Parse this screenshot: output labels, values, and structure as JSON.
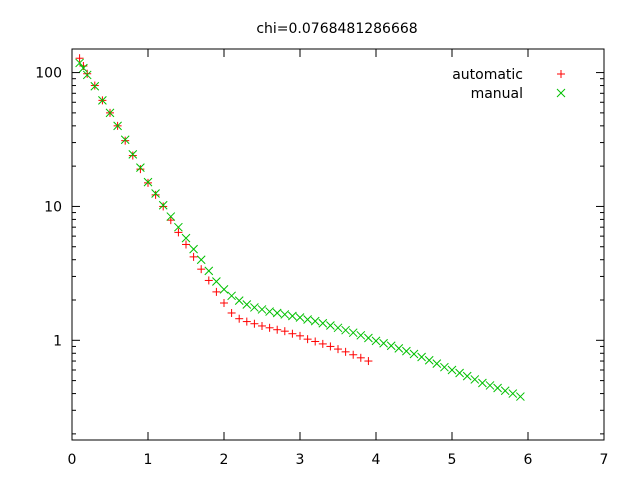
{
  "chart_data": {
    "type": "scatter",
    "title": "chi=0.0768481286668",
    "xlabel": "",
    "ylabel": "",
    "xlim": [
      0,
      7
    ],
    "ylim": [
      0.18,
      150
    ],
    "yscale": "log",
    "grid": false,
    "legend_position": "top-right",
    "xticks": [
      0,
      1,
      2,
      3,
      4,
      5,
      6,
      7
    ],
    "xtick_labels": [
      "0",
      "1",
      "2",
      "3",
      "4",
      "5",
      "6",
      "7"
    ],
    "yticks": [
      1,
      10,
      100
    ],
    "ytick_labels": [
      "1",
      "10",
      "100"
    ],
    "series": [
      {
        "name": "automatic",
        "marker": "plus",
        "color": "#ff0000",
        "x": [
          0.1,
          0.15,
          0.2,
          0.3,
          0.4,
          0.5,
          0.6,
          0.7,
          0.8,
          0.9,
          1.0,
          1.1,
          1.2,
          1.3,
          1.4,
          1.5,
          1.6,
          1.7,
          1.8,
          1.9,
          2.0,
          2.1,
          2.2,
          2.3,
          2.4,
          2.5,
          2.6,
          2.7,
          2.8,
          2.9,
          3.0,
          3.1,
          3.2,
          3.3,
          3.4,
          3.5,
          3.6,
          3.7,
          3.8,
          3.9
        ],
        "y": [
          128,
          112,
          98,
          80,
          62,
          50,
          40,
          31,
          24,
          19,
          15,
          12.2,
          10.0,
          7.9,
          6.4,
          5.2,
          4.2,
          3.4,
          2.8,
          2.3,
          1.9,
          1.6,
          1.45,
          1.38,
          1.33,
          1.28,
          1.24,
          1.2,
          1.17,
          1.12,
          1.08,
          1.02,
          0.98,
          0.94,
          0.9,
          0.86,
          0.82,
          0.78,
          0.74,
          0.7
        ]
      },
      {
        "name": "manual",
        "marker": "cross",
        "color": "#00c000",
        "x": [
          0.1,
          0.15,
          0.2,
          0.3,
          0.4,
          0.5,
          0.6,
          0.7,
          0.8,
          0.9,
          1.0,
          1.1,
          1.2,
          1.3,
          1.4,
          1.5,
          1.6,
          1.7,
          1.8,
          1.9,
          2.0,
          2.1,
          2.2,
          2.3,
          2.4,
          2.5,
          2.6,
          2.7,
          2.8,
          2.9,
          3.0,
          3.1,
          3.2,
          3.3,
          3.4,
          3.5,
          3.6,
          3.7,
          3.8,
          3.9,
          4.0,
          4.1,
          4.2,
          4.3,
          4.4,
          4.5,
          4.6,
          4.7,
          4.8,
          4.9,
          5.0,
          5.1,
          5.2,
          5.3,
          5.4,
          5.5,
          5.6,
          5.7,
          5.8,
          5.9
        ],
        "y": [
          118,
          108,
          96,
          79,
          62,
          50,
          40,
          31.5,
          24.5,
          19.5,
          15.2,
          12.5,
          10.2,
          8.4,
          7.0,
          5.8,
          4.8,
          4.0,
          3.3,
          2.75,
          2.4,
          2.15,
          1.98,
          1.85,
          1.76,
          1.7,
          1.64,
          1.6,
          1.56,
          1.52,
          1.48,
          1.43,
          1.39,
          1.34,
          1.29,
          1.24,
          1.19,
          1.14,
          1.09,
          1.04,
          0.99,
          0.95,
          0.91,
          0.87,
          0.83,
          0.79,
          0.75,
          0.71,
          0.67,
          0.63,
          0.6,
          0.57,
          0.54,
          0.51,
          0.48,
          0.46,
          0.44,
          0.42,
          0.4,
          0.38
        ]
      }
    ]
  }
}
